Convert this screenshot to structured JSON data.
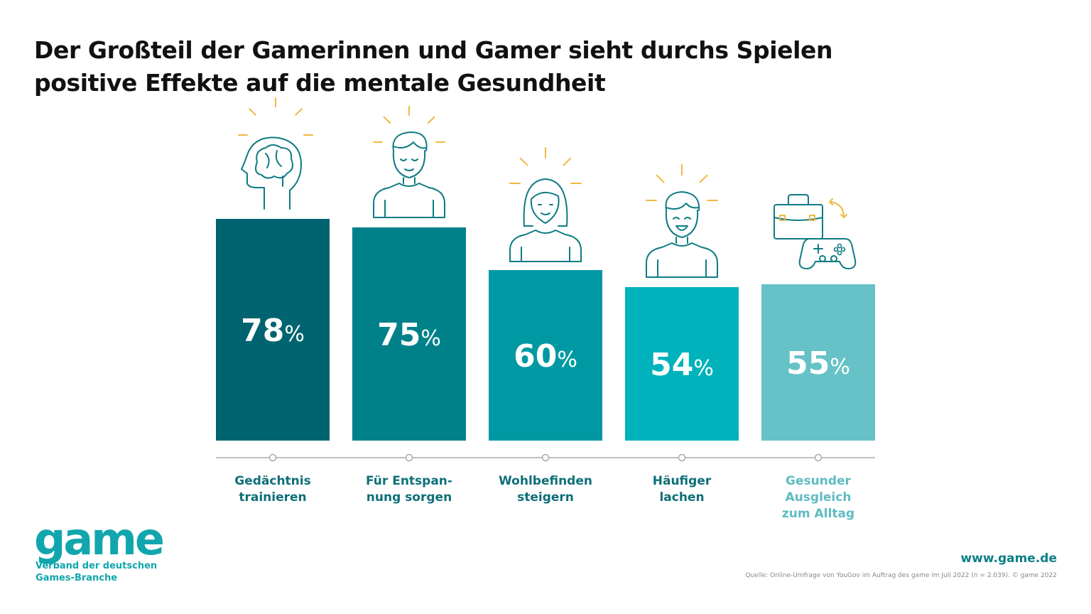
{
  "title_lines": [
    "Der Großteil der Gamerinnen und Gamer sieht durchs Spielen",
    "positive Effekte auf die mentale Gesundheit"
  ],
  "colors": {
    "bars": [
      "#006470",
      "#00818a",
      "#0099a3",
      "#00b2bb",
      "#66c2c7"
    ],
    "icon_stroke": "#0e7b84",
    "icon_ray": "#f0b840",
    "axis": "#aaaaaa"
  },
  "chart_data": {
    "type": "bar",
    "title": "Der Großteil der Gamerinnen und Gamer sieht durchs Spielen positive Effekte auf die mentale Gesundheit",
    "categories": [
      "Gedächtnis trainieren",
      "Für Entspannung sorgen",
      "Wohlbefinden steigern",
      "Häufiger lachen",
      "Gesunder Ausgleich zum Alltag"
    ],
    "category_label_lines": [
      [
        "Gedächtnis",
        "trainieren"
      ],
      [
        "Für Entspan-",
        "nung sorgen"
      ],
      [
        "Wohlbefinden",
        "steigern"
      ],
      [
        "Häufiger",
        "lachen"
      ],
      [
        "Gesunder",
        "Ausgleich",
        "zum Alltag"
      ]
    ],
    "values": [
      78,
      75,
      60,
      54,
      55
    ],
    "unit": "%",
    "icons": [
      "brain-head-icon",
      "relaxed-man-icon",
      "smiling-woman-icon",
      "laughing-man-icon",
      "briefcase-gamepad-icon"
    ],
    "ylim": [
      0,
      100
    ],
    "grid": false,
    "legend": "none"
  },
  "logo": {
    "word": "game",
    "subtitle_lines": [
      "Verband der deutschen",
      "Games-Branche"
    ]
  },
  "footer": {
    "website": "www.game.de",
    "source": "Quelle: Online-Umfrage von YouGov im Auftrag des game im Juli 2022 (n = 2.039). © game 2022"
  }
}
